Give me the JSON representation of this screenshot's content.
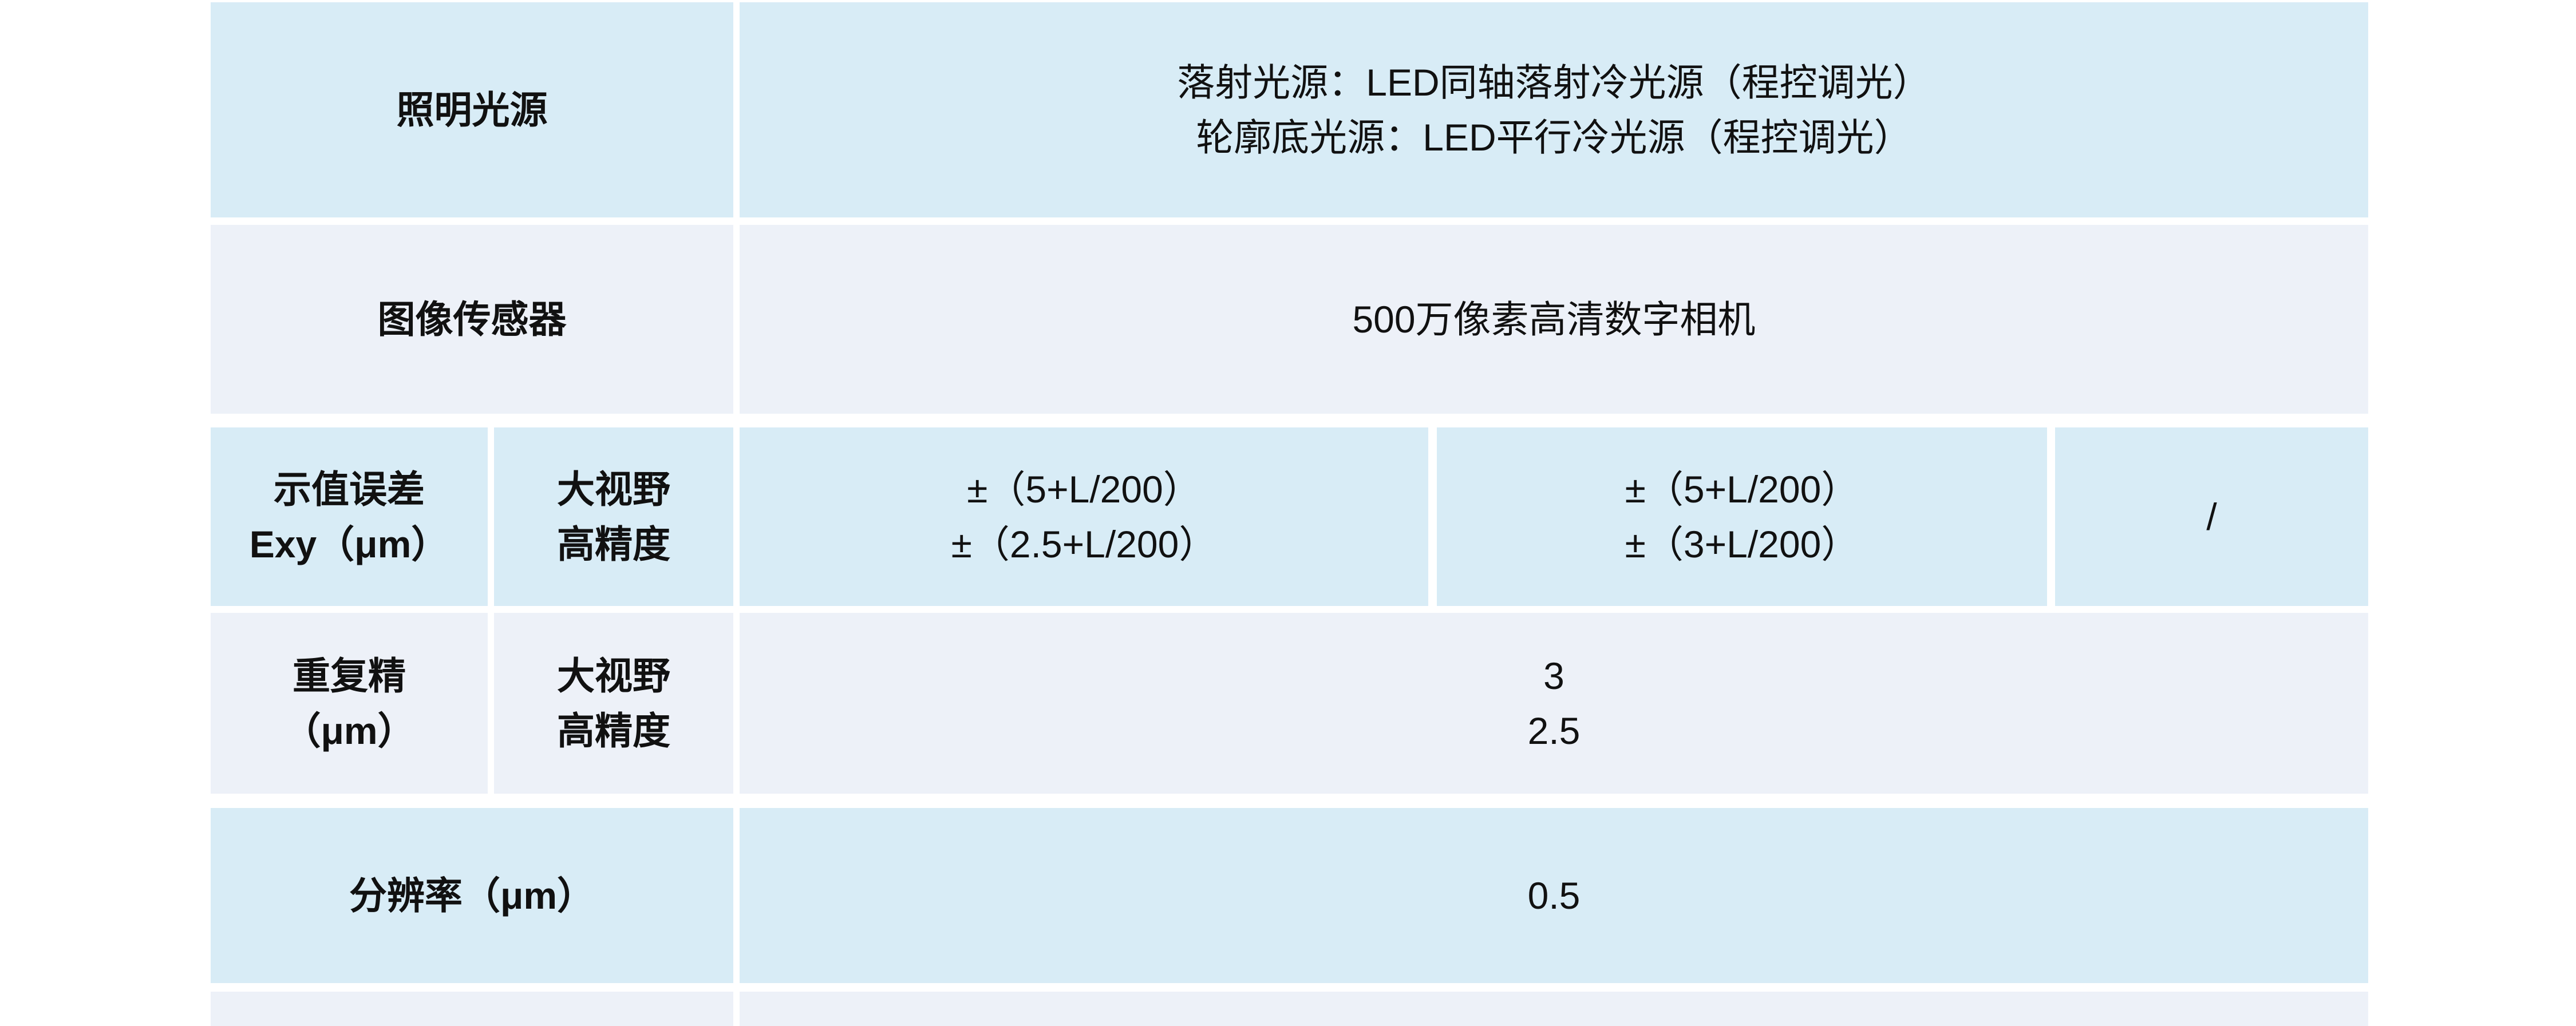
{
  "colors": {
    "row_blue": "#d8ecf6",
    "row_light": "#edf1f8",
    "page_background": "#ffffff",
    "text": "#111111"
  },
  "table": {
    "rows": [
      {
        "id": "illumination-source",
        "label": "照明光源",
        "value_lines": [
          "落射光源：LED同轴落射冷光源（程控调光）",
          "轮廓底光源：LED平行冷光源（程控调光）"
        ]
      },
      {
        "id": "image-sensor",
        "label": "图像传感器",
        "value": "500万像素高清数字相机"
      },
      {
        "id": "indication-error",
        "label_lines": [
          "示值误差",
          "Exy（μm）"
        ],
        "mode_lines": [
          "大视野",
          "高精度"
        ],
        "cells": [
          {
            "lines": [
              "±（5+L/200）",
              "±（2.5+L/200）"
            ]
          },
          {
            "lines": [
              "±（5+L/200）",
              "±（3+L/200）"
            ]
          },
          {
            "lines": [
              "/"
            ]
          }
        ]
      },
      {
        "id": "repeatability",
        "label_lines": [
          "重复精",
          "（μm）"
        ],
        "mode_lines": [
          "大视野",
          "高精度"
        ],
        "value_lines": [
          "3",
          "2.5"
        ]
      },
      {
        "id": "resolution",
        "label": "分辨率（μm）",
        "value": "0.5"
      }
    ]
  }
}
